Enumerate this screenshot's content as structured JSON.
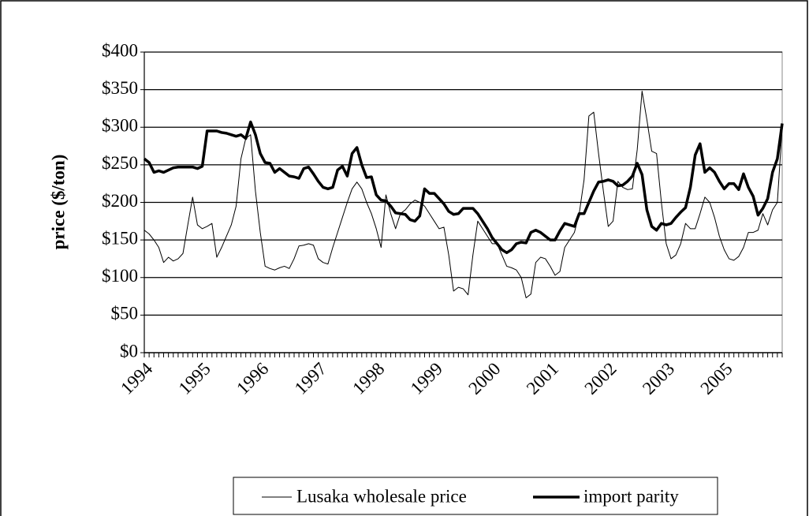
{
  "chart_data": {
    "type": "line",
    "y_label": "price ($/ton)",
    "categories": [
      "1994",
      null,
      null,
      null,
      null,
      null,
      null,
      null,
      null,
      null,
      null,
      null,
      "1995",
      null,
      null,
      null,
      null,
      null,
      null,
      null,
      null,
      null,
      null,
      null,
      "1996",
      null,
      null,
      null,
      null,
      null,
      null,
      null,
      null,
      null,
      null,
      null,
      "1997",
      null,
      null,
      null,
      null,
      null,
      null,
      null,
      null,
      null,
      null,
      null,
      "1998",
      null,
      null,
      null,
      null,
      null,
      null,
      null,
      null,
      null,
      null,
      null,
      "1999",
      null,
      null,
      null,
      null,
      null,
      null,
      null,
      null,
      null,
      null,
      null,
      "2000",
      null,
      null,
      null,
      null,
      null,
      null,
      null,
      null,
      null,
      null,
      null,
      "2001",
      null,
      null,
      null,
      null,
      null,
      null,
      null,
      null,
      null,
      null,
      null,
      "2002",
      null,
      null,
      null,
      null,
      null,
      null,
      null,
      null,
      null,
      null,
      null,
      "2003",
      null,
      null,
      null,
      null,
      null,
      null,
      null,
      null,
      null,
      null,
      null,
      "2005",
      null,
      null,
      null,
      null,
      null,
      null,
      null,
      null,
      null,
      null,
      null,
      null
    ],
    "series": [
      {
        "name": "Lusaka wholesale price",
        "color": "#000000",
        "line_width": 1,
        "values": [
          163,
          158,
          150,
          140,
          120,
          127,
          122,
          125,
          132,
          170,
          207,
          170,
          165,
          168,
          172,
          127,
          140,
          155,
          170,
          195,
          258,
          285,
          290,
          215,
          160,
          115,
          112,
          110,
          113,
          115,
          112,
          125,
          142,
          143,
          145,
          143,
          125,
          120,
          118,
          140,
          160,
          180,
          200,
          218,
          227,
          218,
          200,
          185,
          165,
          140,
          210,
          185,
          165,
          185,
          190,
          198,
          203,
          200,
          195,
          185,
          175,
          165,
          167,
          130,
          82,
          87,
          85,
          77,
          130,
          175,
          165,
          155,
          145,
          145,
          130,
          115,
          113,
          110,
          100,
          73,
          78,
          120,
          127,
          125,
          115,
          103,
          108,
          140,
          150,
          160,
          185,
          230,
          315,
          320,
          265,
          215,
          168,
          175,
          228,
          220,
          217,
          218,
          270,
          348,
          310,
          268,
          265,
          200,
          145,
          125,
          130,
          145,
          172,
          165,
          165,
          185,
          207,
          200,
          180,
          155,
          137,
          125,
          123,
          128,
          140,
          160,
          160,
          163,
          185,
          170,
          190,
          200,
          300
        ]
      },
      {
        "name": "import parity",
        "color": "#000000",
        "line_width": 3.5,
        "values": [
          258,
          253,
          240,
          242,
          240,
          243,
          246,
          247,
          247,
          247,
          247,
          245,
          248,
          295,
          295,
          295,
          293,
          292,
          290,
          288,
          290,
          285,
          307,
          290,
          265,
          253,
          252,
          240,
          245,
          240,
          235,
          234,
          232,
          245,
          247,
          238,
          228,
          220,
          218,
          220,
          243,
          248,
          235,
          265,
          273,
          250,
          233,
          234,
          210,
          203,
          202,
          195,
          186,
          185,
          184,
          177,
          175,
          182,
          218,
          212,
          212,
          205,
          198,
          188,
          184,
          185,
          192,
          192,
          192,
          185,
          175,
          165,
          153,
          145,
          137,
          133,
          137,
          145,
          147,
          146,
          160,
          163,
          160,
          155,
          150,
          150,
          162,
          172,
          170,
          168,
          185,
          185,
          200,
          215,
          227,
          228,
          230,
          228,
          222,
          223,
          228,
          235,
          252,
          237,
          190,
          168,
          163,
          172,
          170,
          172,
          180,
          187,
          193,
          220,
          263,
          278,
          240,
          246,
          240,
          228,
          218,
          225,
          225,
          217,
          238,
          220,
          208,
          183,
          192,
          205,
          240,
          258,
          305
        ]
      }
    ],
    "ylim": [
      0,
      400
    ],
    "yticks": [
      {
        "value": 0,
        "label": "$0"
      },
      {
        "value": 50,
        "label": "$50"
      },
      {
        "value": 100,
        "label": "$100"
      },
      {
        "value": 150,
        "label": "$150"
      },
      {
        "value": 200,
        "label": "$200"
      },
      {
        "value": 250,
        "label": "$250"
      },
      {
        "value": 300,
        "label": "$300"
      },
      {
        "value": 350,
        "label": "$350"
      },
      {
        "value": 400,
        "label": "$400"
      }
    ],
    "grid": true,
    "legend": "bottom"
  }
}
